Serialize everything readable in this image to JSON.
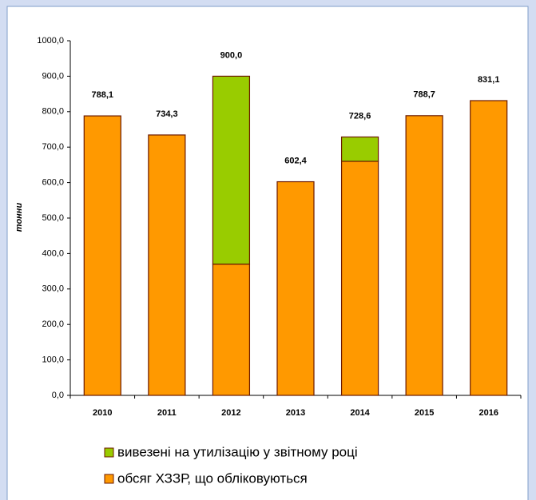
{
  "chart_data": {
    "type": "stacked_bar",
    "categories": [
      "2010",
      "2011",
      "2012",
      "2013",
      "2014",
      "2015",
      "2016"
    ],
    "series": [
      {
        "name": "обсяг ХЗЗР, що обліковуються",
        "color": "#ff9900",
        "values": [
          788.1,
          734.3,
          370,
          602.4,
          660,
          788.7,
          831.1
        ]
      },
      {
        "name": "вивезені на утилізацію у звітному році",
        "color": "#99cc00",
        "values": [
          0,
          0,
          530,
          0,
          68.6,
          0,
          0
        ]
      }
    ],
    "totals": [
      788.1,
      734.3,
      900.0,
      602.4,
      728.6,
      788.7,
      831.1
    ],
    "total_labels": [
      "788,1",
      "734,3",
      "900,0",
      "602,4",
      "728,6",
      "788,7",
      "831,1"
    ],
    "ylabel": "тонни",
    "ylim": [
      0,
      1000
    ],
    "yticks": [
      {
        "value": 0,
        "label": "0,0"
      },
      {
        "value": 100,
        "label": "100,0"
      },
      {
        "value": 200,
        "label": "200,0"
      },
      {
        "value": 300,
        "label": "300,0"
      },
      {
        "value": 400,
        "label": "400,0"
      },
      {
        "value": 500,
        "label": "500,0"
      },
      {
        "value": 600,
        "label": "600,0"
      },
      {
        "value": 700,
        "label": "700,0"
      },
      {
        "value": 800,
        "label": "800,0"
      },
      {
        "value": 900,
        "label": "900,0"
      },
      {
        "value": 1000,
        "label": "1000,0"
      }
    ],
    "grid": false,
    "legend": "bottom"
  }
}
